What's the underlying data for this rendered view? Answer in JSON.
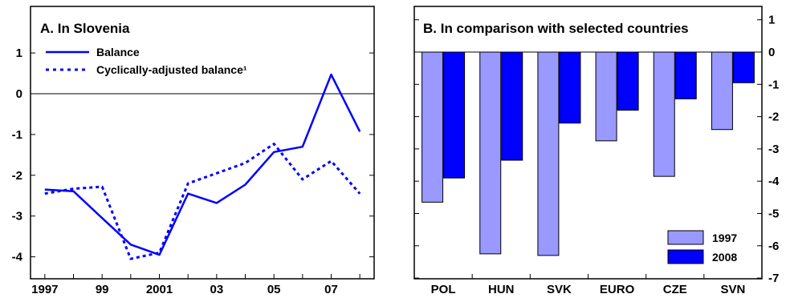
{
  "colors": {
    "balance": "#0000ff",
    "bar_1997": "#9999ff",
    "bar_2008": "#0000ff",
    "axis": "#000000"
  },
  "chart_data": [
    {
      "type": "line",
      "title": "A. In Slovenia",
      "xlabel": "",
      "ylabel": "",
      "ylim": [
        -4.5,
        2.1
      ],
      "yticks": [
        1,
        0,
        -1,
        -2,
        -3,
        -4
      ],
      "xtick_labels": [
        "1997",
        "99",
        "2001",
        "03",
        "05",
        "07"
      ],
      "xtick_years": [
        1997,
        1999,
        2001,
        2003,
        2005,
        2007
      ],
      "xlim": [
        1996.5,
        2008.5
      ],
      "x": [
        1997,
        1998,
        1999,
        2000,
        2001,
        2002,
        2003,
        2004,
        2005,
        2006,
        2007,
        2008
      ],
      "series": [
        {
          "name": "Balance",
          "style": "solid",
          "values": [
            -2.35,
            -2.39,
            -3.05,
            -3.7,
            -3.95,
            -2.45,
            -2.68,
            -2.23,
            -1.43,
            -1.3,
            0.47,
            -0.93
          ]
        },
        {
          "name": "Cyclically-adjusted balance¹",
          "style": "dotted",
          "values": [
            -2.45,
            -2.33,
            -2.28,
            -4.05,
            -3.9,
            -2.2,
            -1.95,
            -1.7,
            -1.23,
            -2.1,
            -1.65,
            -2.45
          ]
        }
      ],
      "legend": "top-left",
      "grid": false
    },
    {
      "type": "bar",
      "title": "B. In comparison with selected countries",
      "xlabel": "",
      "ylabel": "",
      "ylim": [
        -7,
        1
      ],
      "yticks": [
        1,
        0,
        -1,
        -2,
        -3,
        -4,
        -5,
        -6,
        -7
      ],
      "categories": [
        "POL",
        "HUN",
        "SVK",
        "EURO",
        "CZE",
        "SVN"
      ],
      "highlighted_category": "SVN",
      "series": [
        {
          "name": "1997",
          "values": [
            -4.65,
            -6.25,
            -6.3,
            -2.75,
            -3.85,
            -2.4
          ]
        },
        {
          "name": "2008",
          "values": [
            -3.9,
            -3.35,
            -2.2,
            -1.8,
            -1.45,
            -0.95
          ]
        }
      ],
      "legend": "bottom-right",
      "grid": false
    }
  ]
}
